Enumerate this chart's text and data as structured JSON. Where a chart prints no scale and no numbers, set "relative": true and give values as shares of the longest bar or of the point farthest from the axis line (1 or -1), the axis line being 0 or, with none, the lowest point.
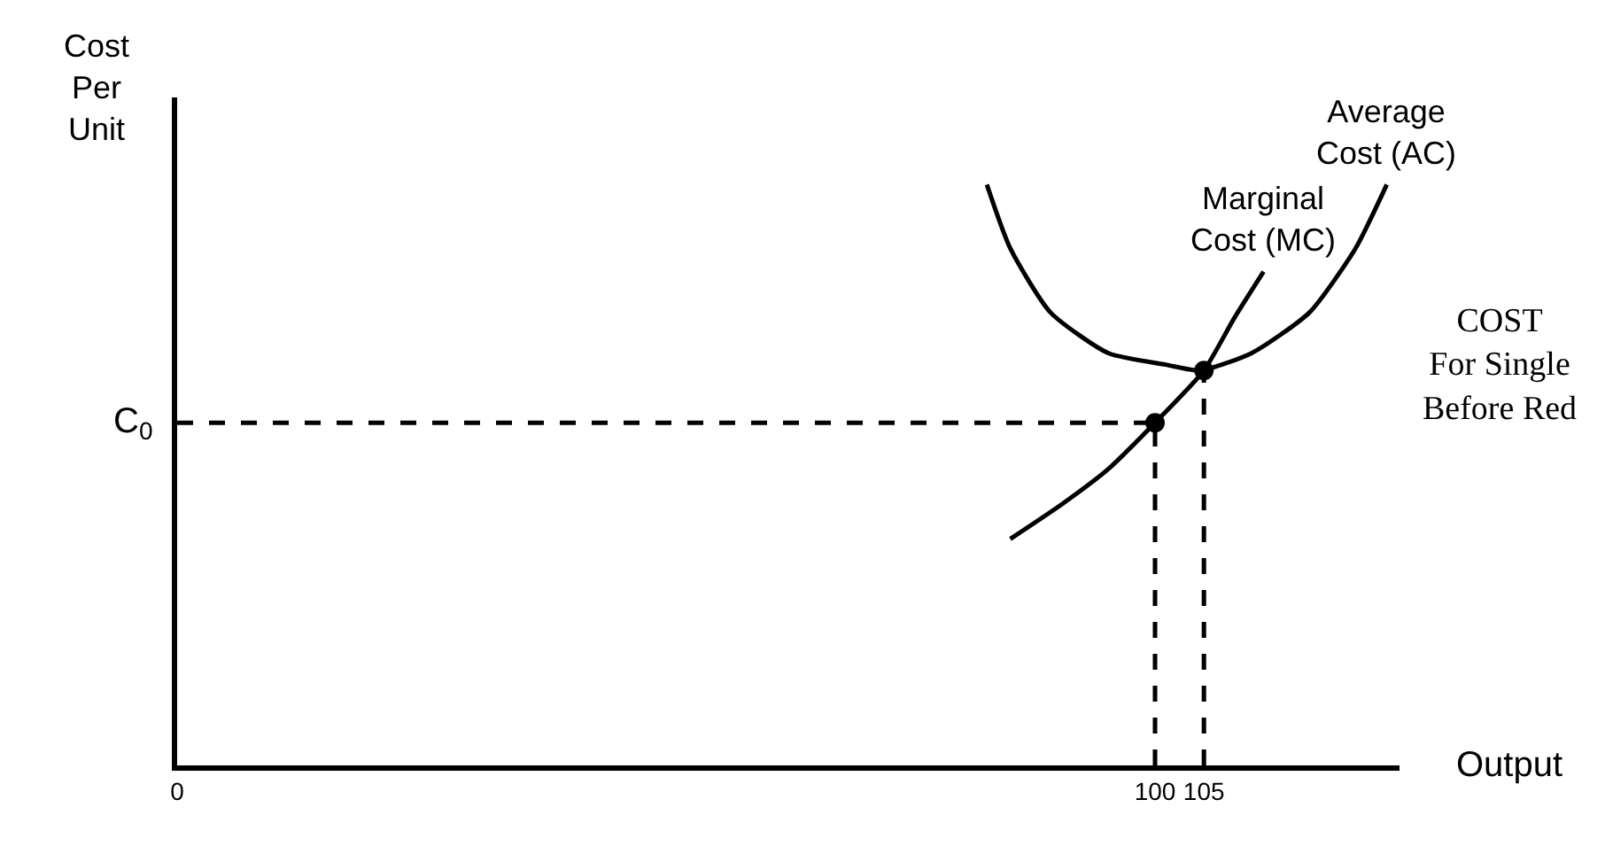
{
  "chart_data": {
    "type": "line",
    "relative": true,
    "xlabel": "Output",
    "ylabel": "Cost Per Unit",
    "xlim": [
      0,
      125
    ],
    "xticks": [
      0,
      100,
      105
    ],
    "line_style": "solid",
    "marker": "none",
    "legend": false,
    "series": [
      {
        "name": "Average Cost (AC)",
        "color": "#000000",
        "x": [
          82.8,
          85.2,
          89.3,
          95.2,
          101.1,
          104.6,
          109.9,
          115.8,
          120.5,
          123.7
        ],
        "values": [
          1.0,
          0.89,
          0.78,
          0.71,
          0.69,
          0.68,
          0.71,
          0.78,
          0.89,
          1.0
        ]
      },
      {
        "name": "Marginal Cost (MC)",
        "color": "#000000",
        "x": [
          85.2,
          90.5,
          95.2,
          100,
          105,
          108.1,
          111.1
        ],
        "values": [
          0.39,
          0.45,
          0.51,
          0.59,
          0.68,
          0.77,
          0.85
        ]
      },
      {
        "type": "line",
        "line_style": "dashed",
        "color": "#000000",
        "x": [
          0,
          100
        ],
        "values": [
          0.59,
          0.59
        ]
      },
      {
        "type": "line",
        "line_style": "dashed",
        "color": "#000000",
        "x": [
          100,
          100
        ],
        "values": [
          0,
          0.59
        ]
      },
      {
        "type": "line",
        "line_style": "dashed",
        "color": "#000000",
        "x": [
          105,
          105
        ],
        "values": [
          0,
          0.68
        ]
      },
      {
        "type": "scatter",
        "marker": "circle",
        "color": "#000000",
        "x": [
          100,
          105
        ],
        "values": [
          0.59,
          0.68
        ]
      }
    ],
    "annotations": [
      {
        "text": "C$_{0}$",
        "x": 0,
        "y": 0.59
      },
      "COST\nFor Single\nBefore Red"
    ]
  }
}
